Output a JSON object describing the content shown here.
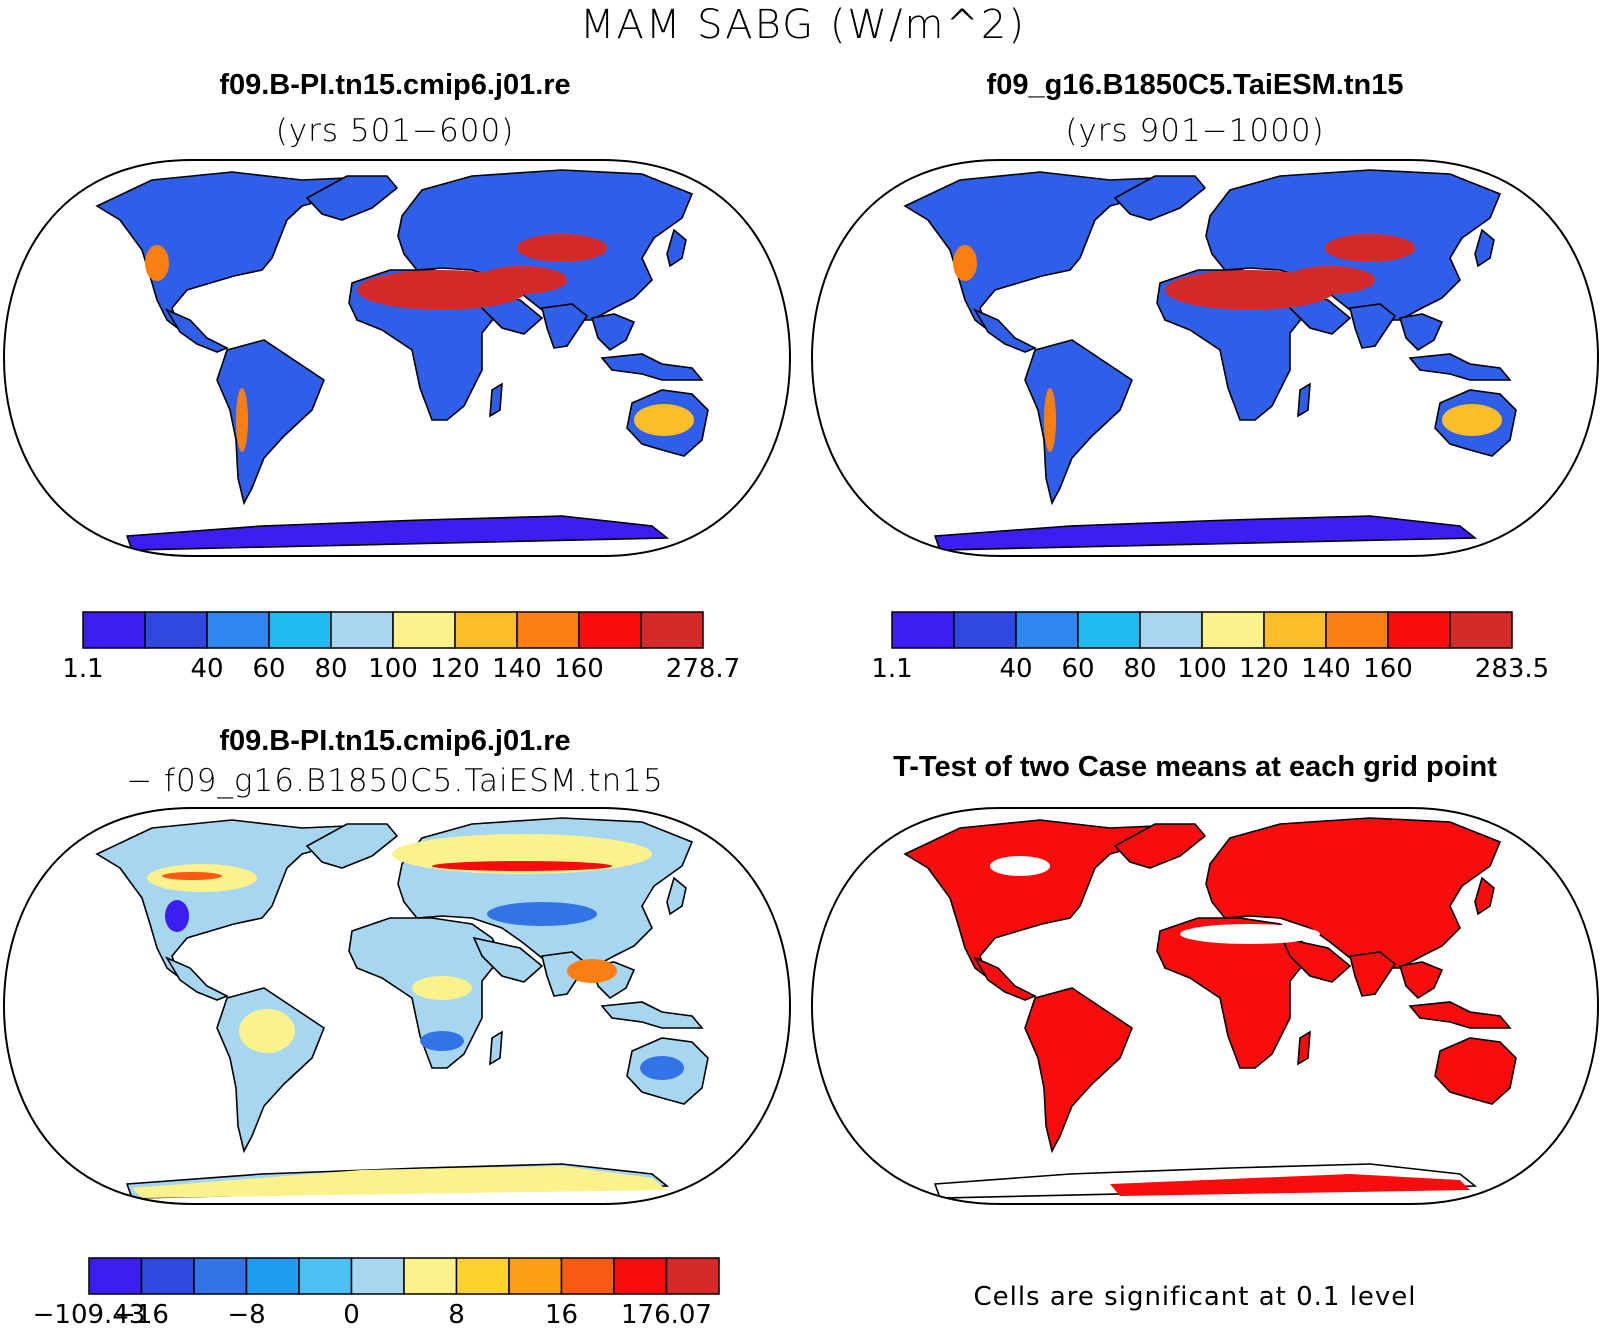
{
  "figure": {
    "title": "MAM SABG (W/m^2)",
    "note": "Cells are significant at 0.1 level"
  },
  "panels": [
    {
      "id": "case1",
      "title": "f09.B-PI.tn15.cmip6.j01.re",
      "subtitle": "(yrs 501−600)",
      "colorbar": {
        "colors": [
          "#3d1ef2",
          "#2e48e0",
          "#2f86ee",
          "#1ebaf0",
          "#a6d6f0",
          "#fbf28c",
          "#fbbd29",
          "#fb7e12",
          "#f70d0d",
          "#d62a2a"
        ],
        "labels": [
          "1.1",
          "",
          "40",
          "60",
          "80",
          "100",
          "120",
          "140",
          "160",
          "",
          "278.7"
        ]
      }
    },
    {
      "id": "case2",
      "title": "f09_g16.B1850C5.TaiESM.tn15",
      "subtitle": "(yrs 901−1000)",
      "colorbar": {
        "colors": [
          "#3d1ef2",
          "#2e48e0",
          "#2f86ee",
          "#1ebaf0",
          "#a6d6f0",
          "#fbf28c",
          "#fbbd29",
          "#fb7e12",
          "#f70d0d",
          "#d62a2a"
        ],
        "labels": [
          "1.1",
          "",
          "40",
          "60",
          "80",
          "100",
          "120",
          "140",
          "160",
          "",
          "283.5"
        ]
      }
    },
    {
      "id": "difference",
      "title": "f09.B-PI.tn15.cmip6.j01.re",
      "subtitle": "− f09_g16.B1850C5.TaiESM.tn15",
      "colorbar": {
        "colors": [
          "#3d1ef2",
          "#2e48e0",
          "#3273e6",
          "#1f9bf0",
          "#4cc0f0",
          "#a6d6f0",
          "#fbf28c",
          "#fbd22e",
          "#fb9e12",
          "#fb5a12",
          "#f70d0d",
          "#d62a2a"
        ],
        "labels": [
          "−109.43",
          "−16",
          "",
          "−8",
          "",
          "0",
          "",
          "8",
          "",
          "16",
          "",
          "176.07"
        ]
      }
    },
    {
      "id": "ttest",
      "title": "T-Test of two Case means at each grid point",
      "subtitle": ""
    }
  ],
  "map_colors": {
    "land_mean": "#2f5fe8",
    "land_warm": "#d62a2a",
    "land_mid": "#fb7e12",
    "antarctica": "#3d1ef2",
    "diff_pos": "#fbf28c",
    "diff_neg": "#a6d6f0",
    "sig": "#f70d0d"
  }
}
